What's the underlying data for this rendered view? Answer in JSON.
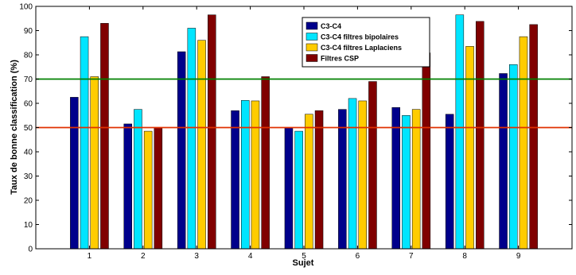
{
  "chart_data": {
    "type": "bar",
    "title": "",
    "xlabel": "Sujet",
    "ylabel": "Taux de bonne classification (%)",
    "ylim": [
      0,
      100
    ],
    "yticks": [
      0,
      10,
      20,
      30,
      40,
      50,
      60,
      70,
      80,
      90,
      100
    ],
    "categories": [
      "1",
      "2",
      "3",
      "4",
      "5",
      "6",
      "7",
      "8",
      "9"
    ],
    "legend_position": "top-right",
    "grid": false,
    "series": [
      {
        "name": "C3-C4",
        "color": "#00008b",
        "values": [
          62.5,
          51.5,
          81.3,
          57,
          50,
          57.5,
          58.3,
          55.5,
          72.3
        ]
      },
      {
        "name": "C3-C4 filtres bipolaires",
        "color": "#00e5ff",
        "values": [
          87.5,
          57.5,
          91,
          61.2,
          48.5,
          62,
          55,
          96.5,
          76
        ]
      },
      {
        "name": "C3-C4 filtres Laplaciens",
        "color": "#ffcc00",
        "values": [
          71,
          48.5,
          86,
          61,
          55.5,
          61,
          57.5,
          83.5,
          87.5
        ]
      },
      {
        "name": "Filtres CSP",
        "color": "#800000",
        "values": [
          93,
          50,
          96.5,
          71,
          57,
          69,
          80.8,
          93.8,
          92.5
        ]
      }
    ],
    "reference_lines": [
      {
        "y": 70,
        "color": "#008000"
      },
      {
        "y": 50,
        "color": "#e03000"
      }
    ]
  }
}
